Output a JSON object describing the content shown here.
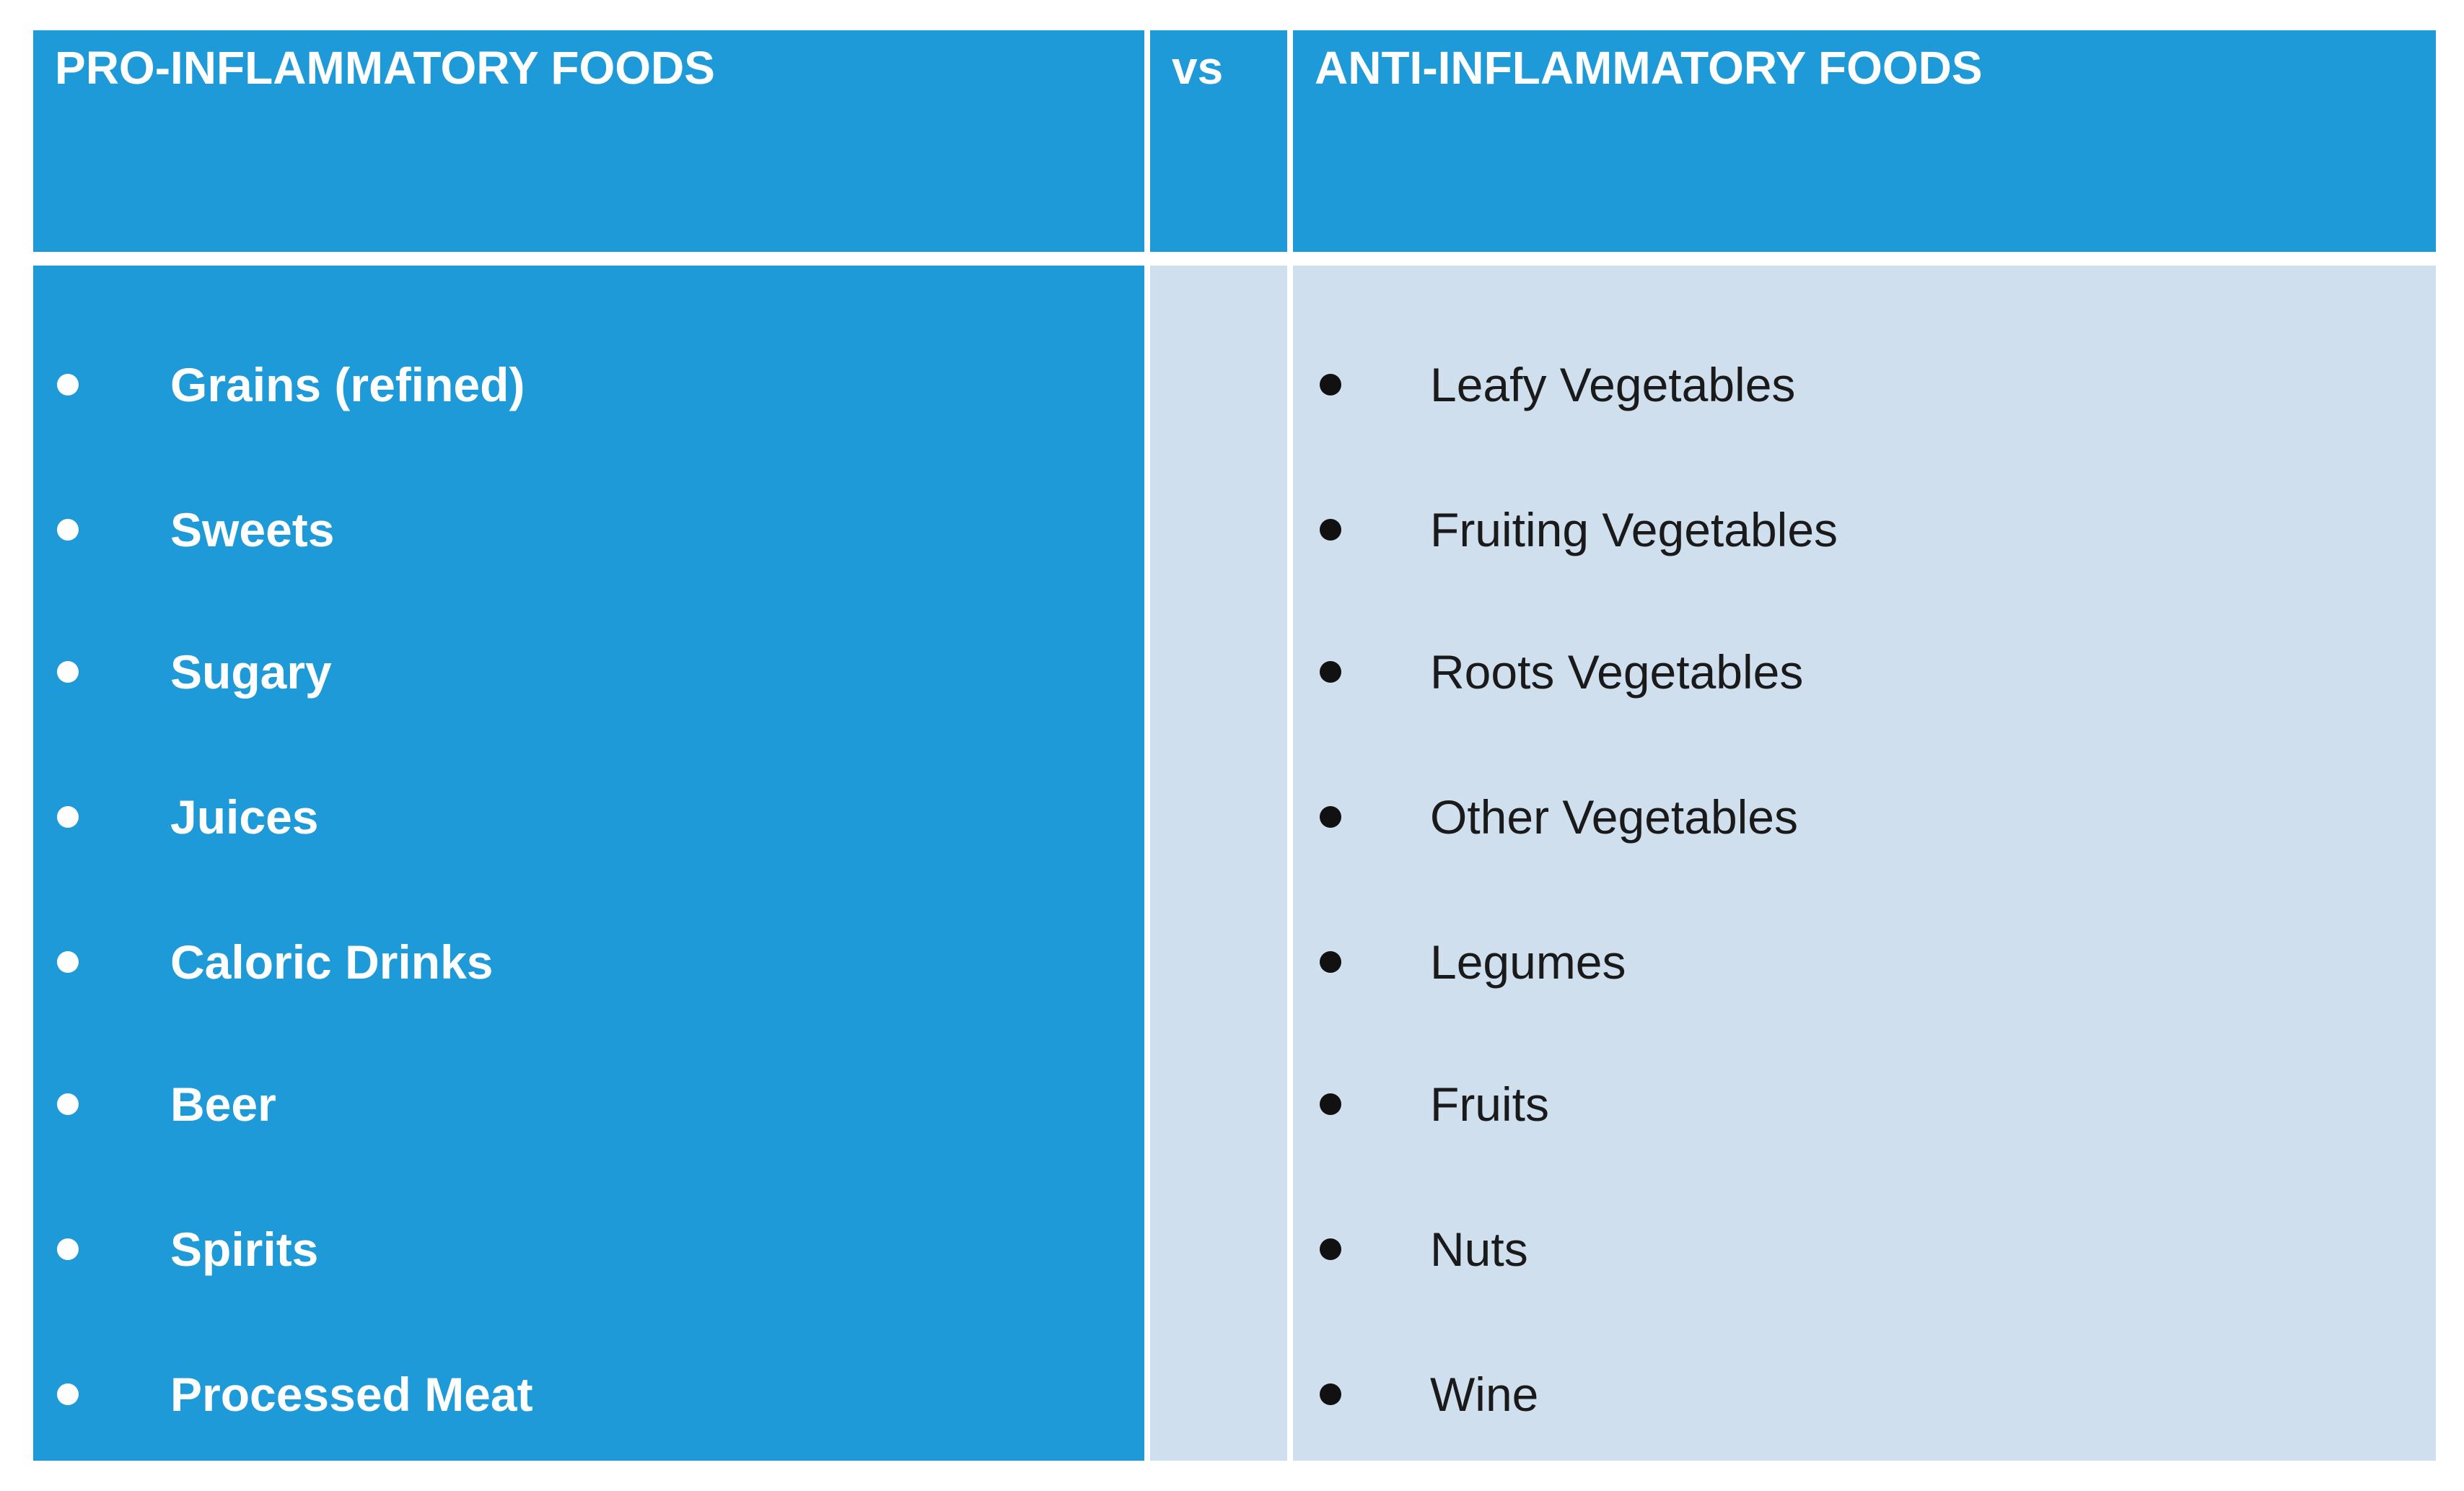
{
  "table": {
    "headers": {
      "pro": "PRO-INFLAMMATORY FOODS",
      "vs": "vs",
      "anti": "ANTI-INFLAMMATORY FOODS"
    },
    "pro_items": [
      "Grains (refined)",
      "Sweets",
      "Sugary",
      "Juices",
      "Caloric Drinks",
      "Beer",
      "Spirits",
      "Processed Meat"
    ],
    "anti_items": [
      "Leafy Vegetables",
      "Fruiting Vegetables",
      "Roots Vegetables",
      "Other Vegetables",
      "Legumes",
      "Fruits",
      "Nuts",
      "Wine"
    ]
  },
  "colors": {
    "header_blue": "#1f9ad9",
    "pro_column": "#1f9ad9",
    "anti_column": "#cfdfee",
    "pro_text": "#ffffff",
    "anti_text": "#1a1a1a"
  }
}
